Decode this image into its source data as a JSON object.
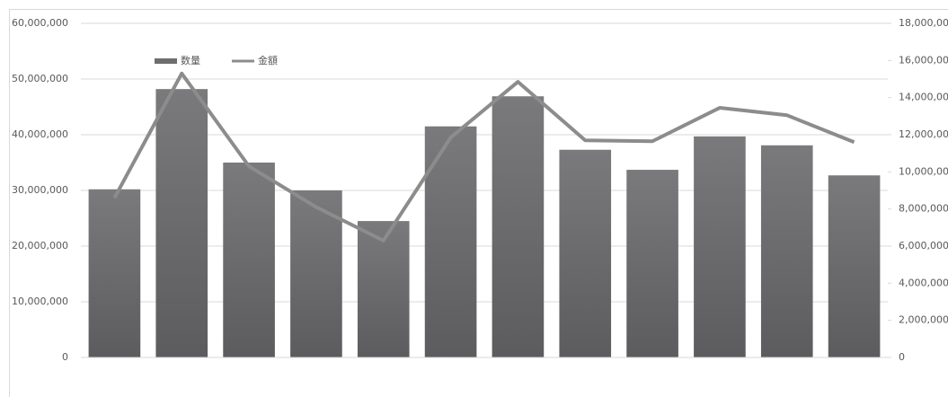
{
  "chart_data": {
    "type": "bar-line",
    "categories": [
      null,
      null,
      null,
      null,
      null,
      null,
      null,
      null,
      null,
      null,
      null,
      null
    ],
    "series": [
      {
        "name": "数量",
        "type": "bar",
        "color": "#6e6e6e",
        "values": [
          30200000,
          48200000,
          35000000,
          30000000,
          24500000,
          41500000,
          46900000,
          37300000,
          33700000,
          39700000,
          38100000,
          32700000
        ]
      },
      {
        "name": "金額",
        "type": "line",
        "axis": "y2",
        "color": "#8c8c8c",
        "values": [
          8600000,
          15300000,
          10300000,
          8100000,
          6300000,
          11850000,
          14850000,
          11700000,
          11650000,
          13450000,
          13050000,
          11600000
        ]
      }
    ],
    "ylim": [
      0,
      60000000
    ],
    "yticks": [
      0,
      {
        "value": 10000000,
        "label": "10,000,000"
      },
      {
        "value": 20000000,
        "label": "20,000,000"
      },
      {
        "value": 30000000,
        "label": "30,000,000"
      },
      {
        "value": 40000000,
        "label": "40,000,000"
      },
      {
        "value": 50000000,
        "label": "50,000,000"
      },
      {
        "value": 60000000,
        "label": "60,000,000"
      }
    ],
    "y2lim": [
      0,
      18000000
    ],
    "y2ticks": [
      0,
      {
        "value": 2000000,
        "label": "2,000,000"
      },
      {
        "value": 4000000,
        "label": "4,000,000"
      },
      {
        "value": 6000000,
        "label": "6,000,000"
      },
      {
        "value": 8000000,
        "label": "8,000,000"
      },
      {
        "value": 10000000,
        "label": "10,000,000"
      },
      {
        "value": 12000000,
        "label": "12,000,000"
      },
      {
        "value": 14000000,
        "label": "14,000,000"
      },
      {
        "value": 16000000,
        "label": "16,000,000"
      },
      {
        "value": 18000000,
        "label": "18,000,000"
      }
    ],
    "grid": true
  }
}
